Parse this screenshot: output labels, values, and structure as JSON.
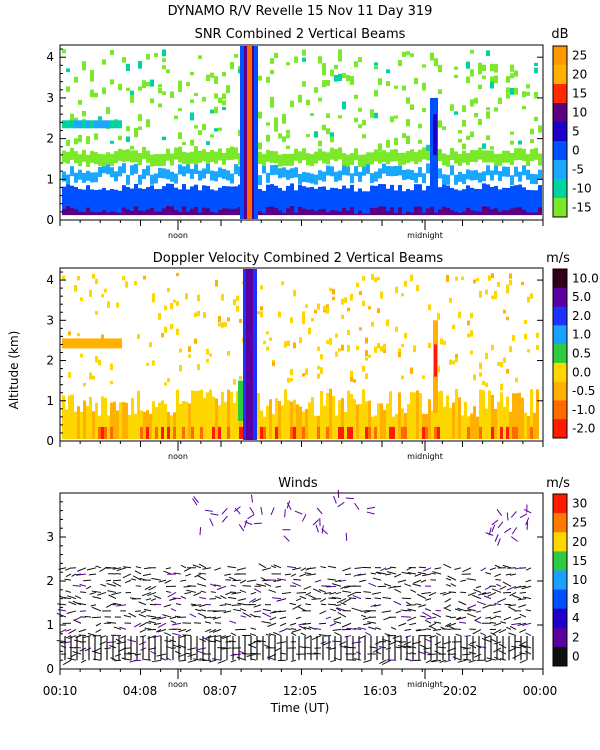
{
  "header": {
    "line1": "DYNAMO R/V Revelle  15 Nov 11 Day 319"
  },
  "chart_data": [
    {
      "type": "heatmap",
      "title": "SNR Combined 2 Vertical Beams",
      "unit": "dB",
      "ylim": [
        0,
        4.3
      ],
      "yticks": [
        "0",
        "1",
        "2",
        "3",
        "4"
      ],
      "x_markers": [
        "noon",
        "midnight"
      ],
      "colorbar": {
        "labels": [
          "25",
          "20",
          "15",
          "10",
          "5",
          "0",
          "-5",
          "-10",
          "-15"
        ],
        "colors": [
          "#ff9900",
          "#ffb000",
          "#ff2a00",
          "#5b0080",
          "#1e00c8",
          "#0050ff",
          "#1aa8ff",
          "#00d2a0",
          "#7be82a"
        ]
      }
    },
    {
      "type": "heatmap",
      "title": "Doppler Velocity Combined 2 Vertical Beams",
      "unit": "m/s",
      "ylabel": "Altitude (km)",
      "ylim": [
        0,
        4.3
      ],
      "yticks": [
        "0",
        "1",
        "2",
        "3",
        "4"
      ],
      "x_markers": [
        "noon",
        "midnight"
      ],
      "colorbar": {
        "labels": [
          "10.0",
          "5.0",
          "2.0",
          "1.0",
          "0.5",
          "0.0",
          "-0.5",
          "-1.0",
          "-2.0"
        ],
        "colors": [
          "#300018",
          "#5a00a0",
          "#1e32ff",
          "#1aa0ff",
          "#2ecc40",
          "#ffd700",
          "#ffb000",
          "#ff6a00",
          "#ff1a00"
        ]
      }
    },
    {
      "type": "scatter",
      "title": "Winds",
      "unit": "m/s",
      "xlabel": "Time (UT)",
      "ylim": [
        0,
        4
      ],
      "yticks": [
        "0",
        "1",
        "2",
        "3"
      ],
      "x_markers": [
        "noon",
        "midnight"
      ],
      "xticks": [
        "00:10",
        "04:08",
        "08:07",
        "12:05",
        "16:03",
        "20:02",
        "00:00"
      ],
      "colorbar": {
        "labels": [
          "30",
          "25",
          "20",
          "15",
          "10",
          "8",
          "4",
          "2",
          "0"
        ],
        "colors": [
          "#ff1a00",
          "#ff7a00",
          "#ffd700",
          "#2ecc40",
          "#1aa0ff",
          "#0050ff",
          "#1e00c8",
          "#5a00a0",
          "#101010"
        ]
      }
    }
  ]
}
